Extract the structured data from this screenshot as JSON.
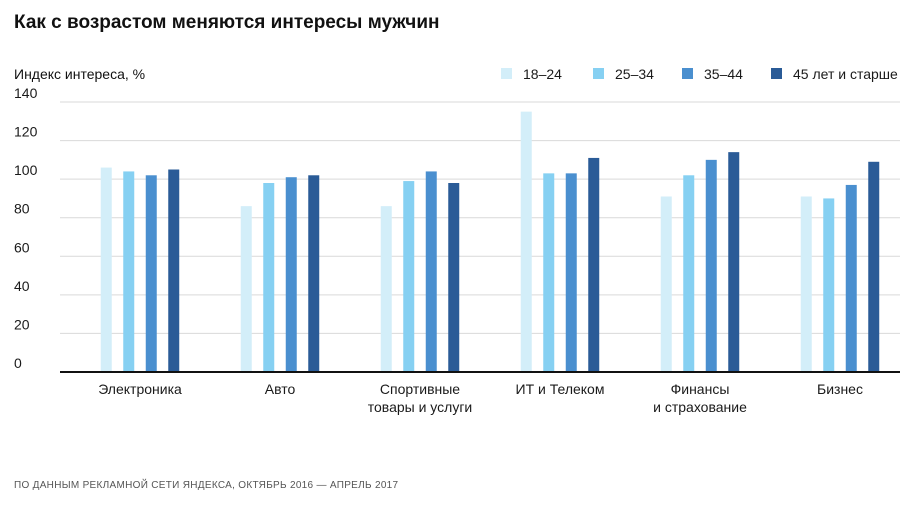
{
  "header": {
    "title": "Как с возрастом меняются интересы мужчин",
    "source": "ПО ДАННЫМ РЕКЛАМНОЙ СЕТИ ЯНДЕКСА, ОКТЯБРЬ 2016 — АПРЕЛЬ 2017"
  },
  "chart_data": {
    "type": "bar",
    "title": "Как с возрастом меняются интересы мужчин",
    "ylabel": "Индекс интереса, %",
    "xlabel": "",
    "ylim": [
      0,
      140
    ],
    "yticks": [
      0,
      20,
      40,
      60,
      80,
      100,
      120,
      140
    ],
    "grid": true,
    "legend_position": "top-right",
    "categories": [
      [
        "Электроника"
      ],
      [
        "Авто"
      ],
      [
        "Спортивные",
        "товары и услуги"
      ],
      [
        "ИТ и Телеком"
      ],
      [
        "Финансы",
        "и страхование"
      ],
      [
        "Бизнес"
      ]
    ],
    "series": [
      {
        "name": "18–24",
        "color": "#d3eef9",
        "values": [
          106,
          86,
          86,
          135,
          91,
          91
        ]
      },
      {
        "name": "25–34",
        "color": "#86d0f2",
        "values": [
          104,
          98,
          99,
          103,
          102,
          90
        ]
      },
      {
        "name": "35–44",
        "color": "#4a8fcf",
        "values": [
          102,
          101,
          104,
          103,
          110,
          97
        ]
      },
      {
        "name": "45 лет и старше",
        "color": "#2a5b97",
        "values": [
          105,
          102,
          98,
          111,
          114,
          109
        ]
      }
    ]
  }
}
